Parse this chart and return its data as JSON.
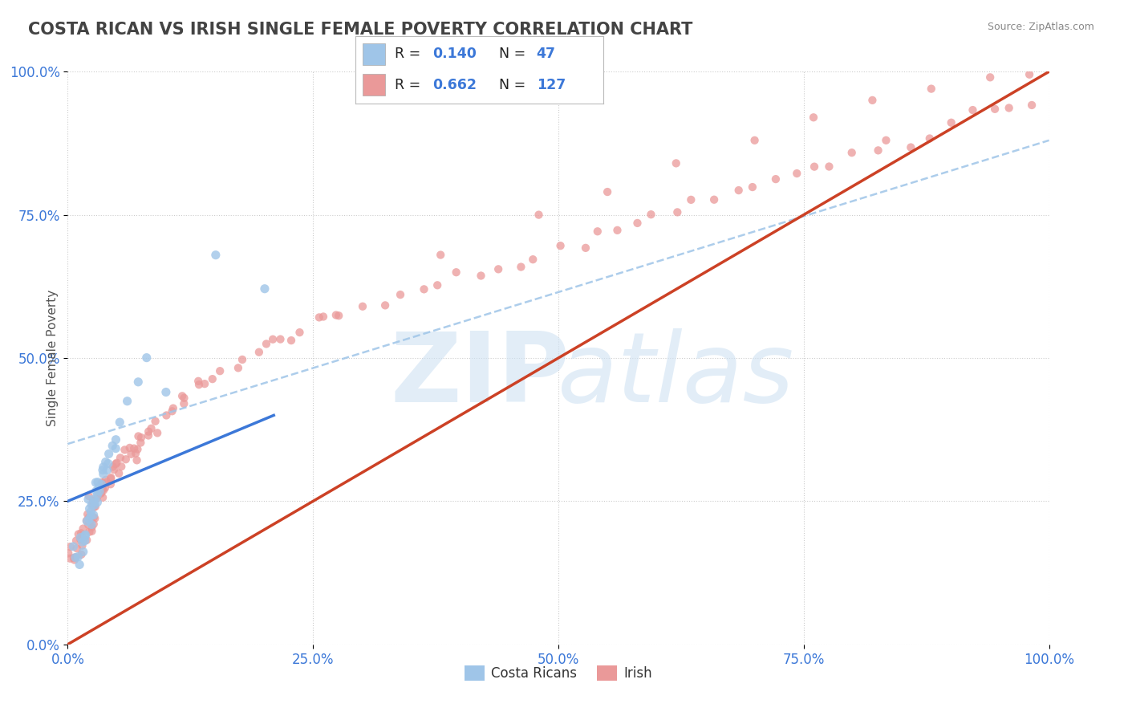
{
  "title": "COSTA RICAN VS IRISH SINGLE FEMALE POVERTY CORRELATION CHART",
  "source_text": "Source: ZipAtlas.com",
  "ylabel": "Single Female Poverty",
  "watermark": "ZIPAtlas",
  "blue_color": "#9fc5e8",
  "pink_color": "#ea9999",
  "blue_line_color": "#3c78d8",
  "pink_line_color": "#cc4125",
  "dashed_line_color": "#9fc5e8",
  "legend_value_color": "#3c78d8",
  "title_color": "#434343",
  "axis_label_color": "#3c78d8",
  "background_color": "#ffffff",
  "xlim": [
    0.0,
    1.0
  ],
  "ylim": [
    0.0,
    1.0
  ],
  "xticks": [
    0.0,
    0.25,
    0.5,
    0.75,
    1.0
  ],
  "yticks": [
    0.0,
    0.25,
    0.5,
    0.75,
    1.0
  ],
  "xtick_labels": [
    "0.0%",
    "25.0%",
    "50.0%",
    "75.0%",
    "100.0%"
  ],
  "ytick_labels": [
    "0.0%",
    "25.0%",
    "50.0%",
    "75.0%",
    "100.0%"
  ],
  "cr_x": [
    0.005,
    0.008,
    0.01,
    0.012,
    0.013,
    0.015,
    0.015,
    0.016,
    0.018,
    0.018,
    0.02,
    0.02,
    0.021,
    0.022,
    0.023,
    0.024,
    0.025,
    0.025,
    0.026,
    0.027,
    0.028,
    0.028,
    0.029,
    0.03,
    0.03,
    0.031,
    0.032,
    0.033,
    0.034,
    0.035,
    0.036,
    0.037,
    0.038,
    0.039,
    0.04,
    0.041,
    0.043,
    0.045,
    0.048,
    0.05,
    0.055,
    0.06,
    0.07,
    0.08,
    0.1,
    0.15,
    0.2
  ],
  "cr_y": [
    0.175,
    0.155,
    0.15,
    0.14,
    0.18,
    0.195,
    0.175,
    0.16,
    0.19,
    0.175,
    0.25,
    0.22,
    0.215,
    0.23,
    0.21,
    0.245,
    0.235,
    0.225,
    0.24,
    0.23,
    0.26,
    0.25,
    0.255,
    0.28,
    0.27,
    0.27,
    0.285,
    0.275,
    0.265,
    0.28,
    0.295,
    0.3,
    0.31,
    0.305,
    0.32,
    0.315,
    0.33,
    0.34,
    0.35,
    0.36,
    0.39,
    0.42,
    0.46,
    0.51,
    0.44,
    0.68,
    0.62
  ],
  "ir_x": [
    0.004,
    0.005,
    0.006,
    0.007,
    0.008,
    0.009,
    0.01,
    0.01,
    0.011,
    0.012,
    0.013,
    0.014,
    0.015,
    0.015,
    0.016,
    0.017,
    0.018,
    0.018,
    0.019,
    0.02,
    0.021,
    0.022,
    0.022,
    0.023,
    0.024,
    0.025,
    0.025,
    0.026,
    0.027,
    0.028,
    0.029,
    0.03,
    0.031,
    0.032,
    0.033,
    0.034,
    0.035,
    0.036,
    0.037,
    0.038,
    0.039,
    0.04,
    0.041,
    0.042,
    0.043,
    0.044,
    0.045,
    0.046,
    0.047,
    0.048,
    0.05,
    0.052,
    0.054,
    0.056,
    0.058,
    0.06,
    0.062,
    0.064,
    0.066,
    0.068,
    0.07,
    0.072,
    0.074,
    0.076,
    0.078,
    0.08,
    0.085,
    0.09,
    0.095,
    0.1,
    0.105,
    0.11,
    0.115,
    0.12,
    0.125,
    0.13,
    0.135,
    0.14,
    0.15,
    0.16,
    0.17,
    0.18,
    0.19,
    0.2,
    0.21,
    0.22,
    0.23,
    0.24,
    0.25,
    0.26,
    0.27,
    0.28,
    0.3,
    0.32,
    0.34,
    0.36,
    0.38,
    0.4,
    0.42,
    0.44,
    0.46,
    0.48,
    0.5,
    0.52,
    0.54,
    0.56,
    0.58,
    0.6,
    0.62,
    0.64,
    0.66,
    0.68,
    0.7,
    0.72,
    0.74,
    0.76,
    0.78,
    0.8,
    0.82,
    0.84,
    0.86,
    0.88,
    0.9,
    0.92,
    0.94,
    0.96,
    0.98
  ],
  "ir_y": [
    0.155,
    0.148,
    0.152,
    0.158,
    0.16,
    0.163,
    0.168,
    0.175,
    0.17,
    0.172,
    0.178,
    0.182,
    0.185,
    0.19,
    0.188,
    0.192,
    0.195,
    0.2,
    0.198,
    0.205,
    0.208,
    0.212,
    0.215,
    0.22,
    0.225,
    0.228,
    0.235,
    0.23,
    0.238,
    0.24,
    0.245,
    0.248,
    0.252,
    0.255,
    0.258,
    0.262,
    0.265,
    0.268,
    0.272,
    0.275,
    0.278,
    0.282,
    0.285,
    0.288,
    0.292,
    0.295,
    0.298,
    0.302,
    0.305,
    0.308,
    0.315,
    0.318,
    0.322,
    0.325,
    0.328,
    0.332,
    0.335,
    0.338,
    0.342,
    0.345,
    0.35,
    0.355,
    0.358,
    0.362,
    0.365,
    0.37,
    0.378,
    0.388,
    0.395,
    0.402,
    0.408,
    0.415,
    0.422,
    0.428,
    0.435,
    0.442,
    0.448,
    0.455,
    0.465,
    0.478,
    0.49,
    0.498,
    0.508,
    0.52,
    0.528,
    0.535,
    0.542,
    0.55,
    0.558,
    0.565,
    0.572,
    0.58,
    0.59,
    0.602,
    0.615,
    0.622,
    0.63,
    0.642,
    0.655,
    0.662,
    0.67,
    0.682,
    0.695,
    0.705,
    0.715,
    0.725,
    0.735,
    0.748,
    0.758,
    0.768,
    0.778,
    0.788,
    0.8,
    0.81,
    0.82,
    0.832,
    0.842,
    0.855,
    0.865,
    0.875,
    0.885,
    0.895,
    0.908,
    0.918,
    0.928,
    0.942,
    0.955
  ],
  "ir_extra_x": [
    0.38,
    0.48,
    0.55,
    0.62,
    0.7,
    0.76,
    0.82,
    0.88,
    0.94,
    0.98
  ],
  "ir_extra_y": [
    0.68,
    0.75,
    0.79,
    0.84,
    0.88,
    0.92,
    0.95,
    0.97,
    0.99,
    0.995
  ],
  "cr_line_x0": 0.0,
  "cr_line_x1": 0.21,
  "cr_line_y0": 0.25,
  "cr_line_y1": 0.4,
  "pink_line_x0": 0.0,
  "pink_line_x1": 1.0,
  "pink_line_y0": 0.0,
  "pink_line_y1": 1.0,
  "dash_line_x0": 0.0,
  "dash_line_x1": 1.0,
  "dash_line_y0": 0.35,
  "dash_line_y1": 0.88
}
